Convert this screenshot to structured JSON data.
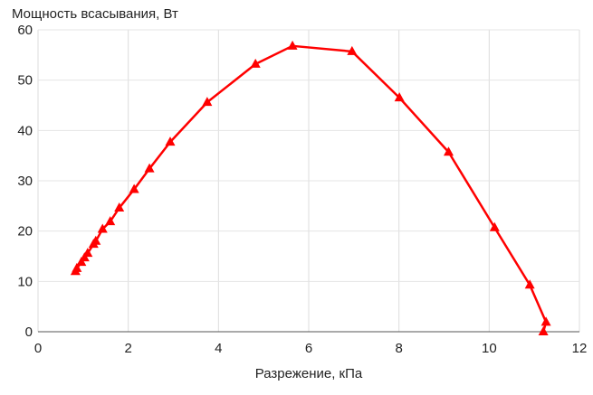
{
  "chart_data": {
    "type": "line",
    "title": "",
    "ylabel": "Мощность всасывания, Вт",
    "xlabel": "Разрежение, кПа",
    "xlim": [
      0,
      12
    ],
    "ylim": [
      0,
      60
    ],
    "xticks": [
      "0",
      "2",
      "4",
      "6",
      "8",
      "10",
      "12"
    ],
    "yticks": [
      "0",
      "10",
      "20",
      "30",
      "40",
      "50",
      "60"
    ],
    "grid": true,
    "legend": "none",
    "marker": "triangle",
    "color": "#ff0000",
    "series": [
      {
        "x": [
          0.83,
          0.86,
          0.96,
          1.03,
          1.1,
          1.23,
          1.28,
          1.43,
          1.6,
          1.8,
          2.13,
          2.47,
          2.93,
          3.75,
          4.82,
          5.64,
          6.96,
          8.01,
          9.1,
          10.12,
          10.9,
          11.26,
          11.2
        ],
        "y": [
          12.0,
          12.6,
          13.8,
          14.7,
          15.6,
          17.4,
          18.0,
          20.4,
          21.9,
          24.6,
          28.3,
          32.4,
          37.7,
          45.6,
          53.2,
          56.8,
          55.7,
          46.5,
          35.7,
          20.7,
          9.3,
          1.9,
          0.0
        ]
      }
    ]
  }
}
